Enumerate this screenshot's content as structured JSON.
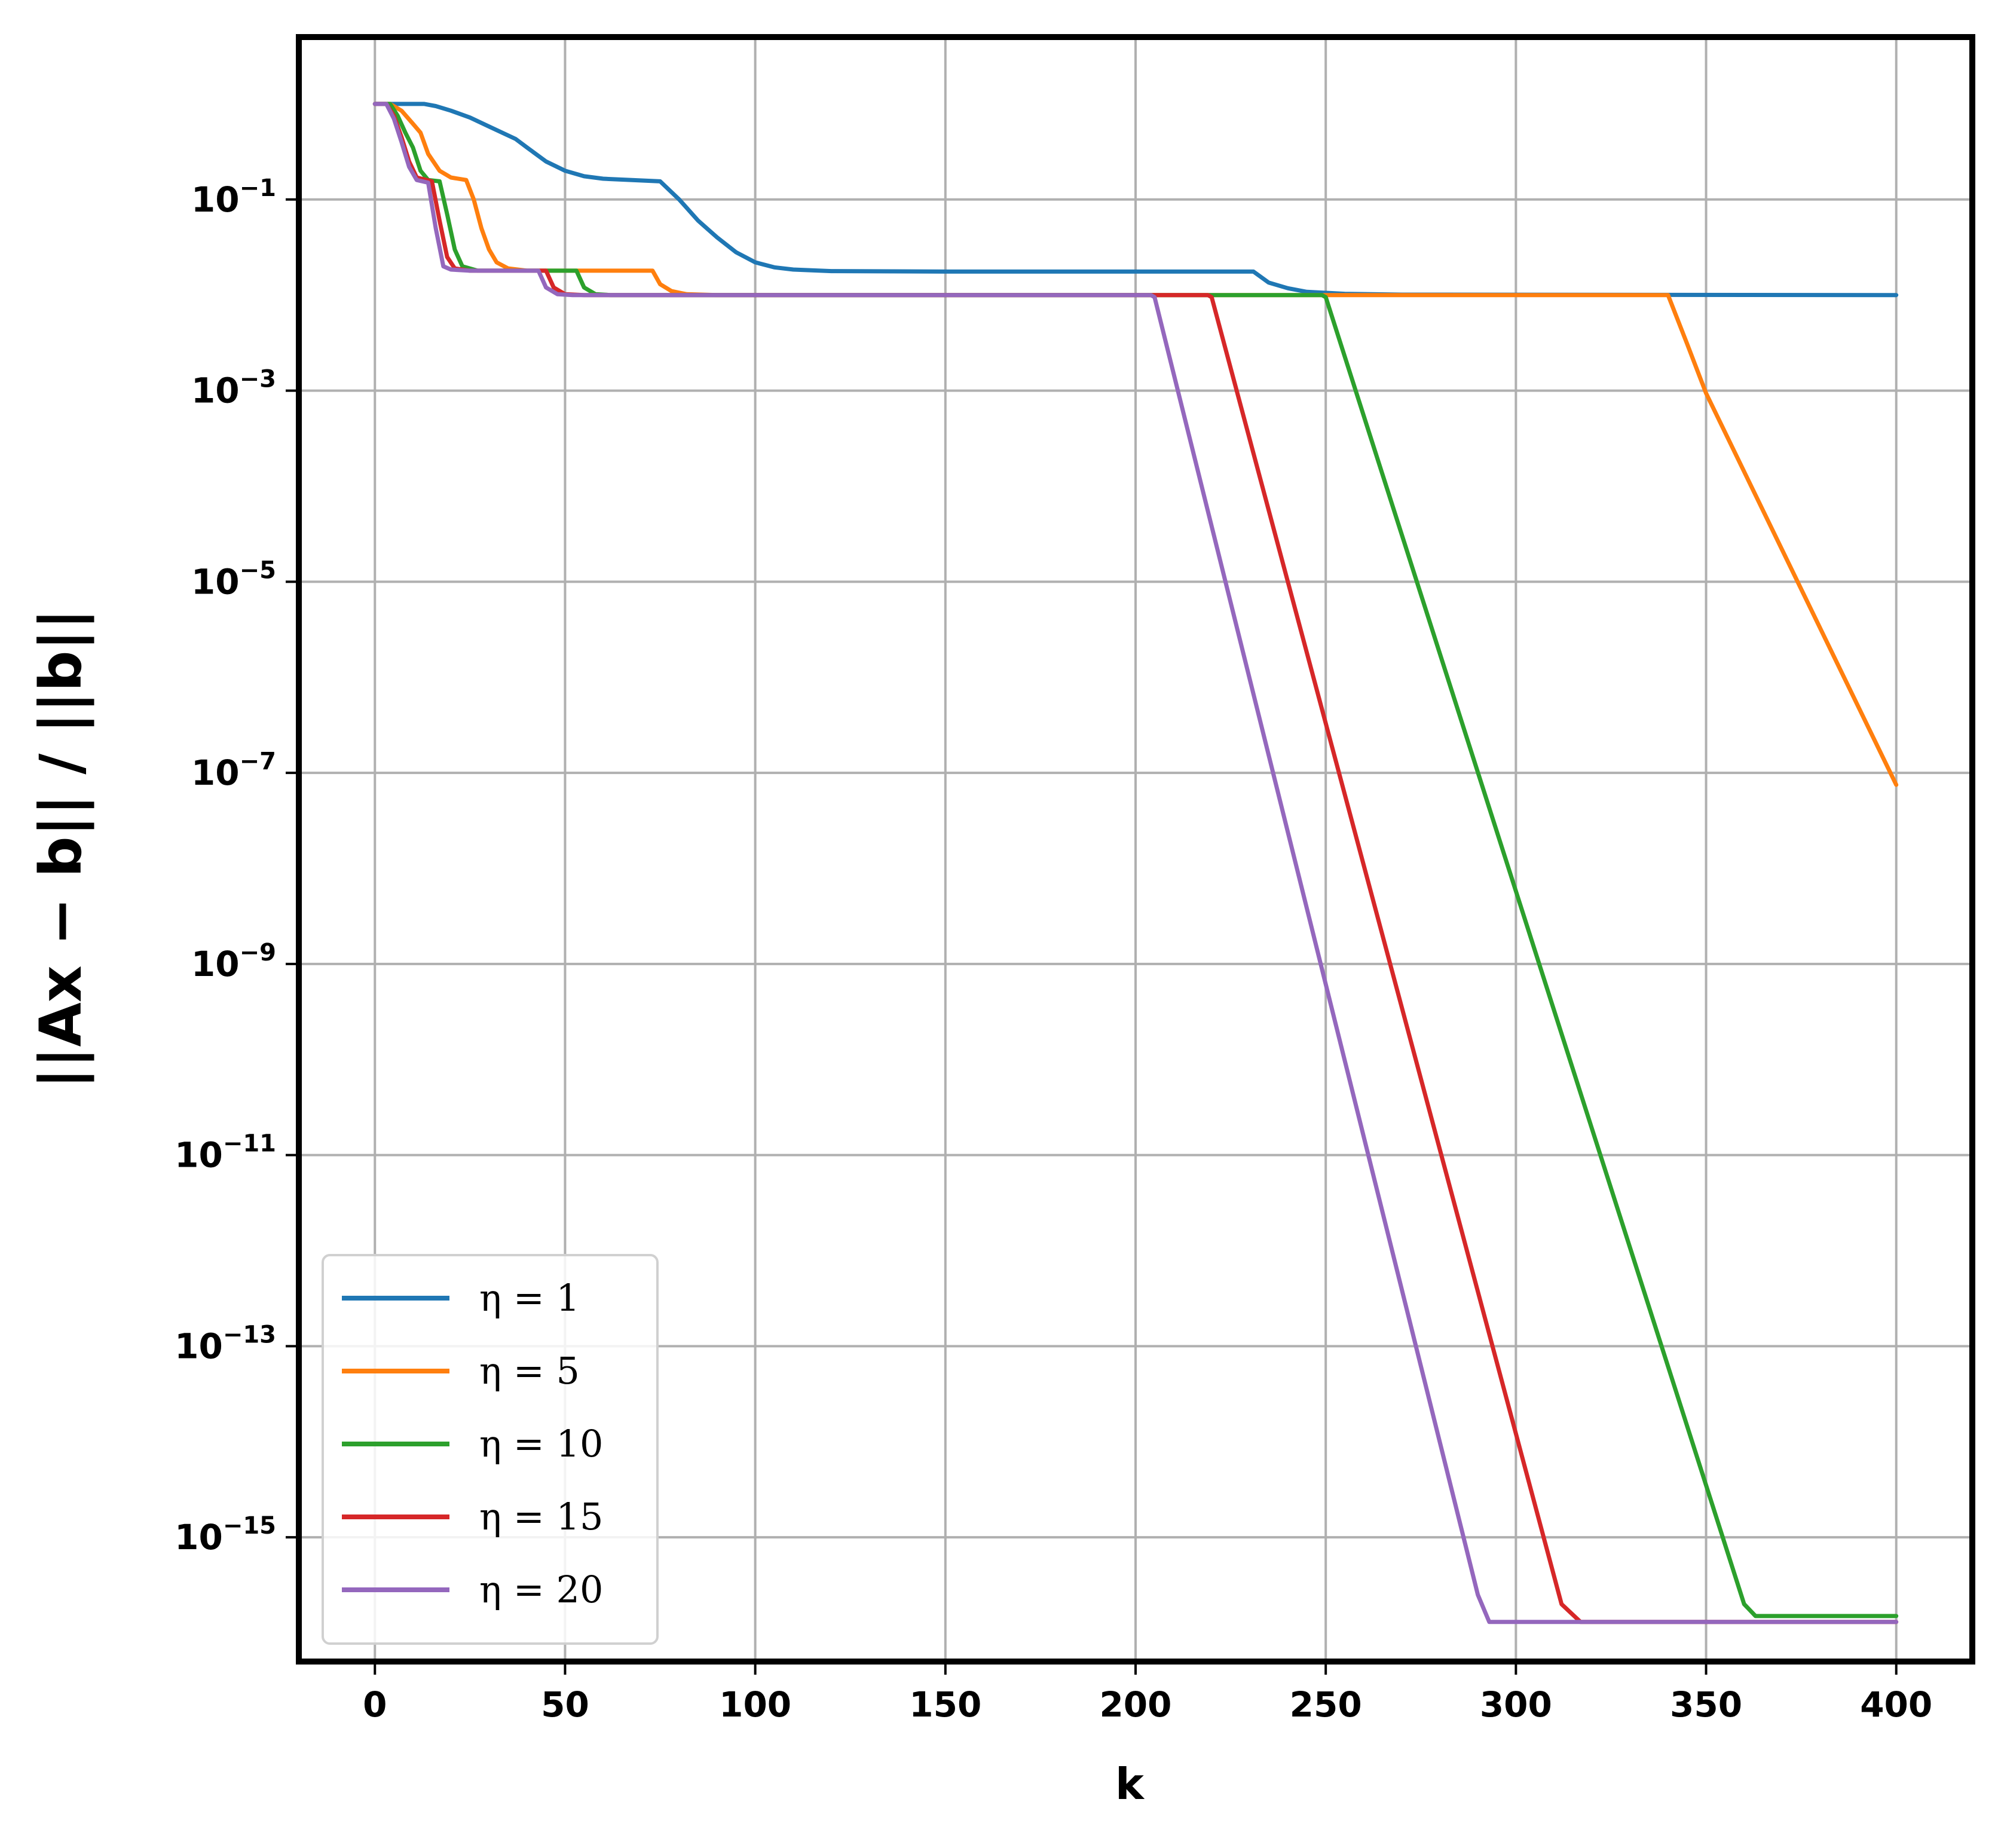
{
  "chart_data": {
    "type": "line",
    "title": "",
    "xlabel": "k",
    "ylabel": "||Ax − b|| / ||b||",
    "xlim": [
      -20,
      420
    ],
    "ylim_exponent": [
      -16.3,
      0.7
    ],
    "yscale": "log",
    "grid": true,
    "legend_position": "bottom-left",
    "x_ticks": [
      0,
      50,
      100,
      150,
      200,
      250,
      300,
      350,
      400
    ],
    "y_ticks": [
      {
        "exp": -1,
        "base": "10",
        "sup": "−1"
      },
      {
        "exp": -3,
        "base": "10",
        "sup": "−3"
      },
      {
        "exp": -5,
        "base": "10",
        "sup": "−5"
      },
      {
        "exp": -7,
        "base": "10",
        "sup": "−7"
      },
      {
        "exp": -9,
        "base": "10",
        "sup": "−9"
      },
      {
        "exp": -11,
        "base": "10",
        "sup": "−11"
      },
      {
        "exp": -13,
        "base": "10",
        "sup": "−13"
      },
      {
        "exp": -15,
        "base": "10",
        "sup": "−15"
      }
    ],
    "series": [
      {
        "name": "η = 1",
        "color": "#1f77b4",
        "points": [
          [
            0,
            1
          ],
          [
            3,
            1
          ],
          [
            13,
            1
          ],
          [
            16,
            0.95
          ],
          [
            20,
            0.85
          ],
          [
            25,
            0.72
          ],
          [
            30,
            0.58
          ],
          [
            37,
            0.43
          ],
          [
            40,
            0.35
          ],
          [
            45,
            0.25
          ],
          [
            50,
            0.2
          ],
          [
            55,
            0.175
          ],
          [
            60,
            0.165
          ],
          [
            75,
            0.155
          ],
          [
            80,
            0.1
          ],
          [
            85,
            0.06
          ],
          [
            90,
            0.04
          ],
          [
            95,
            0.028
          ],
          [
            100,
            0.022
          ],
          [
            105,
            0.0195
          ],
          [
            110,
            0.0185
          ],
          [
            120,
            0.0178
          ],
          [
            150,
            0.0176
          ],
          [
            231,
            0.0176
          ],
          [
            235,
            0.0135
          ],
          [
            240,
            0.0118
          ],
          [
            245,
            0.0108
          ],
          [
            255,
            0.0103
          ],
          [
            270,
            0.0101
          ],
          [
            400,
            0.01
          ]
        ]
      },
      {
        "name": "η = 5",
        "color": "#ff7f0e",
        "points": [
          [
            0,
            1
          ],
          [
            4,
            1
          ],
          [
            7,
            0.85
          ],
          [
            10,
            0.62
          ],
          [
            12,
            0.5
          ],
          [
            14,
            0.3
          ],
          [
            17,
            0.2
          ],
          [
            20,
            0.17
          ],
          [
            24,
            0.16
          ],
          [
            26,
            0.1
          ],
          [
            28,
            0.05
          ],
          [
            30,
            0.03
          ],
          [
            32,
            0.022
          ],
          [
            35,
            0.019
          ],
          [
            40,
            0.018
          ],
          [
            73,
            0.018
          ],
          [
            75,
            0.013
          ],
          [
            78,
            0.011
          ],
          [
            82,
            0.0102
          ],
          [
            90,
            0.01
          ],
          [
            340,
            0.01
          ],
          [
            345,
            0.0031
          ],
          [
            350,
            0.00094
          ],
          [
            400,
            7.5e-08
          ]
        ]
      },
      {
        "name": "η = 10",
        "color": "#2ca02c",
        "points": [
          [
            0,
            1
          ],
          [
            4,
            1
          ],
          [
            6,
            0.75
          ],
          [
            8,
            0.5
          ],
          [
            10,
            0.35
          ],
          [
            12,
            0.2
          ],
          [
            14,
            0.16
          ],
          [
            17,
            0.155
          ],
          [
            19,
            0.07
          ],
          [
            21,
            0.03
          ],
          [
            23,
            0.02
          ],
          [
            27,
            0.018
          ],
          [
            53,
            0.018
          ],
          [
            55,
            0.012
          ],
          [
            58,
            0.0102
          ],
          [
            62,
            0.01
          ],
          [
            249,
            0.01
          ],
          [
            250,
            0.0095
          ],
          [
            360,
            2e-16
          ],
          [
            363,
            1.5e-16
          ],
          [
            400,
            1.5e-16
          ]
        ]
      },
      {
        "name": "η = 15",
        "color": "#d62728",
        "points": [
          [
            0,
            1
          ],
          [
            3,
            1
          ],
          [
            5,
            0.75
          ],
          [
            7,
            0.45
          ],
          [
            9,
            0.25
          ],
          [
            11,
            0.17
          ],
          [
            15,
            0.155
          ],
          [
            17,
            0.06
          ],
          [
            19,
            0.025
          ],
          [
            21,
            0.019
          ],
          [
            25,
            0.018
          ],
          [
            45,
            0.018
          ],
          [
            47,
            0.012
          ],
          [
            50,
            0.0102
          ],
          [
            55,
            0.01
          ],
          [
            219,
            0.01
          ],
          [
            220,
            0.0095
          ],
          [
            312,
            2e-16
          ],
          [
            317,
            1.3e-16
          ],
          [
            400,
            1.3e-16
          ]
        ]
      },
      {
        "name": "η = 20",
        "color": "#9467bd",
        "points": [
          [
            0,
            1
          ],
          [
            3,
            1
          ],
          [
            5,
            0.7
          ],
          [
            7,
            0.4
          ],
          [
            9,
            0.22
          ],
          [
            11,
            0.16
          ],
          [
            14,
            0.15
          ],
          [
            16,
            0.05
          ],
          [
            18,
            0.02
          ],
          [
            20,
            0.0185
          ],
          [
            25,
            0.018
          ],
          [
            43,
            0.018
          ],
          [
            45,
            0.012
          ],
          [
            48,
            0.0102
          ],
          [
            52,
            0.01
          ],
          [
            204,
            0.01
          ],
          [
            205,
            0.0095
          ],
          [
            290,
            2.5e-16
          ],
          [
            293,
            1.3e-16
          ],
          [
            400,
            1.3e-16
          ]
        ]
      }
    ]
  }
}
